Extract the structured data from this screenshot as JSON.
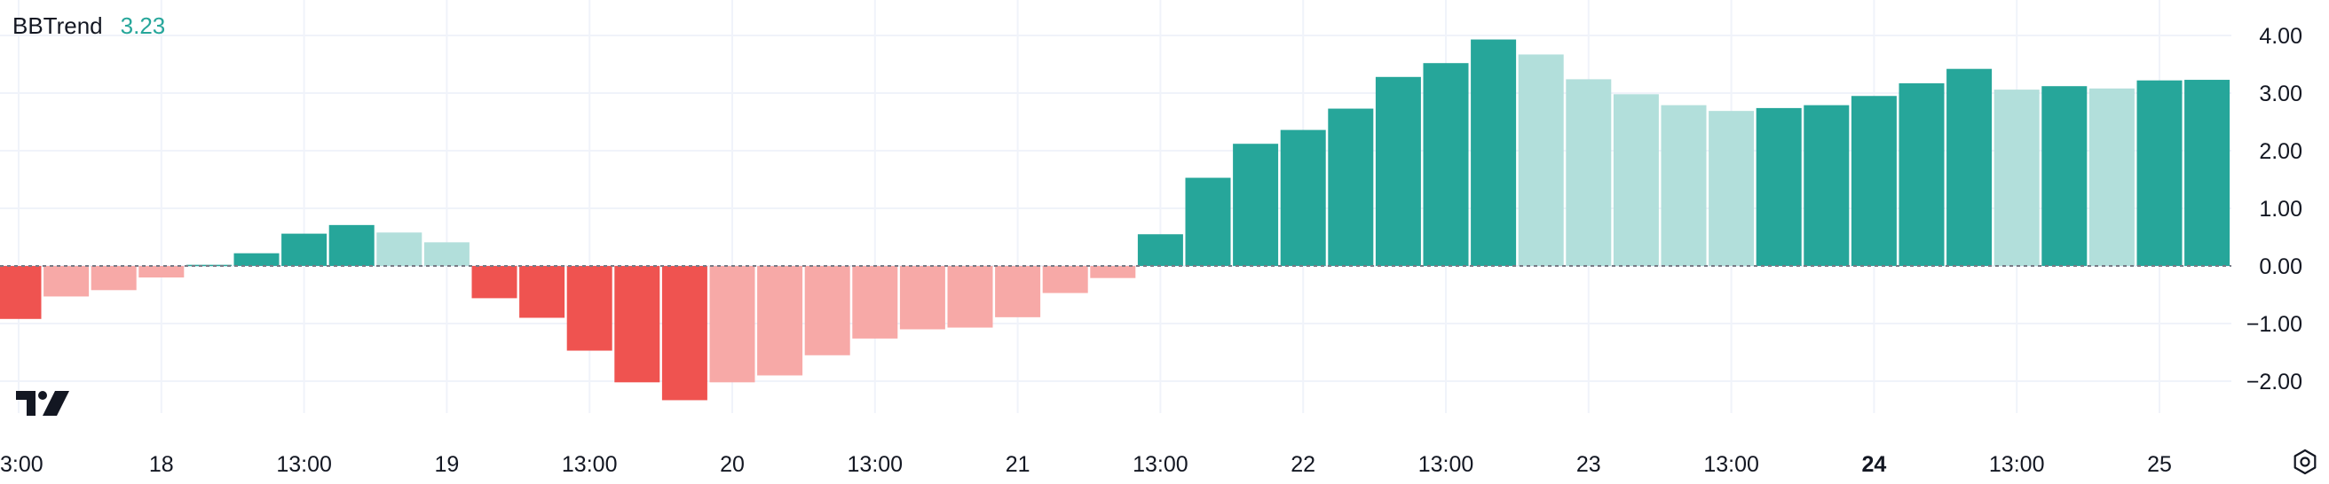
{
  "indicator": {
    "name": "BBTrend",
    "value": "3.23",
    "value_color": "#26a69a"
  },
  "icons": {
    "logo": "tradingview-logo",
    "settings": "settings-gear-icon"
  },
  "colors": {
    "positive_rising": "#26a69a",
    "positive_falling": "#b2dfdb",
    "negative_falling": "#ef5350",
    "negative_rising": "#f7a9a7",
    "zero_line": "#787b86",
    "grid": "#f0f3fa",
    "axis_text": "#131722"
  },
  "chart_data": {
    "type": "bar",
    "title": "BBTrend",
    "xlabel": "",
    "ylabel": "",
    "ylim": [
      -2.35,
      4.15
    ],
    "grid": true,
    "legend": "top-left",
    "y_ticks": [
      4,
      3,
      2,
      1,
      0,
      -1,
      -2
    ],
    "y_tick_labels": [
      "4.00",
      "3.00",
      "2.00",
      "1.00",
      "0.00",
      "−1.00",
      "−2.00"
    ],
    "x_tick_labels": [
      {
        "label": "3:00",
        "index": 0,
        "bold": false
      },
      {
        "label": "18",
        "index": 3,
        "bold": false
      },
      {
        "label": "13:00",
        "index": 6,
        "bold": false
      },
      {
        "label": "19",
        "index": 9,
        "bold": false
      },
      {
        "label": "13:00",
        "index": 12,
        "bold": false
      },
      {
        "label": "20",
        "index": 15,
        "bold": false
      },
      {
        "label": "13:00",
        "index": 18,
        "bold": false
      },
      {
        "label": "21",
        "index": 21,
        "bold": false
      },
      {
        "label": "13:00",
        "index": 24,
        "bold": false
      },
      {
        "label": "22",
        "index": 27,
        "bold": false
      },
      {
        "label": "13:00",
        "index": 30,
        "bold": false
      },
      {
        "label": "23",
        "index": 33,
        "bold": false
      },
      {
        "label": "13:00",
        "index": 36,
        "bold": false
      },
      {
        "label": "24",
        "index": 39,
        "bold": true
      },
      {
        "label": "13:00",
        "index": 42,
        "bold": false
      },
      {
        "label": "25",
        "index": 45,
        "bold": false
      }
    ],
    "values": [
      -0.92,
      -0.53,
      -0.42,
      -0.2,
      0.02,
      0.22,
      0.56,
      0.71,
      0.58,
      0.41,
      -0.56,
      -0.9,
      -1.47,
      -2.02,
      -2.33,
      -2.02,
      -1.9,
      -1.55,
      -1.26,
      -1.1,
      -1.07,
      -0.89,
      -0.47,
      -0.21,
      0.55,
      1.53,
      2.12,
      2.36,
      2.73,
      3.28,
      3.52,
      3.93,
      3.67,
      3.24,
      2.98,
      2.79,
      2.69,
      2.74,
      2.79,
      2.95,
      3.17,
      3.42,
      3.06,
      3.12,
      3.08,
      3.22,
      3.23
    ]
  }
}
